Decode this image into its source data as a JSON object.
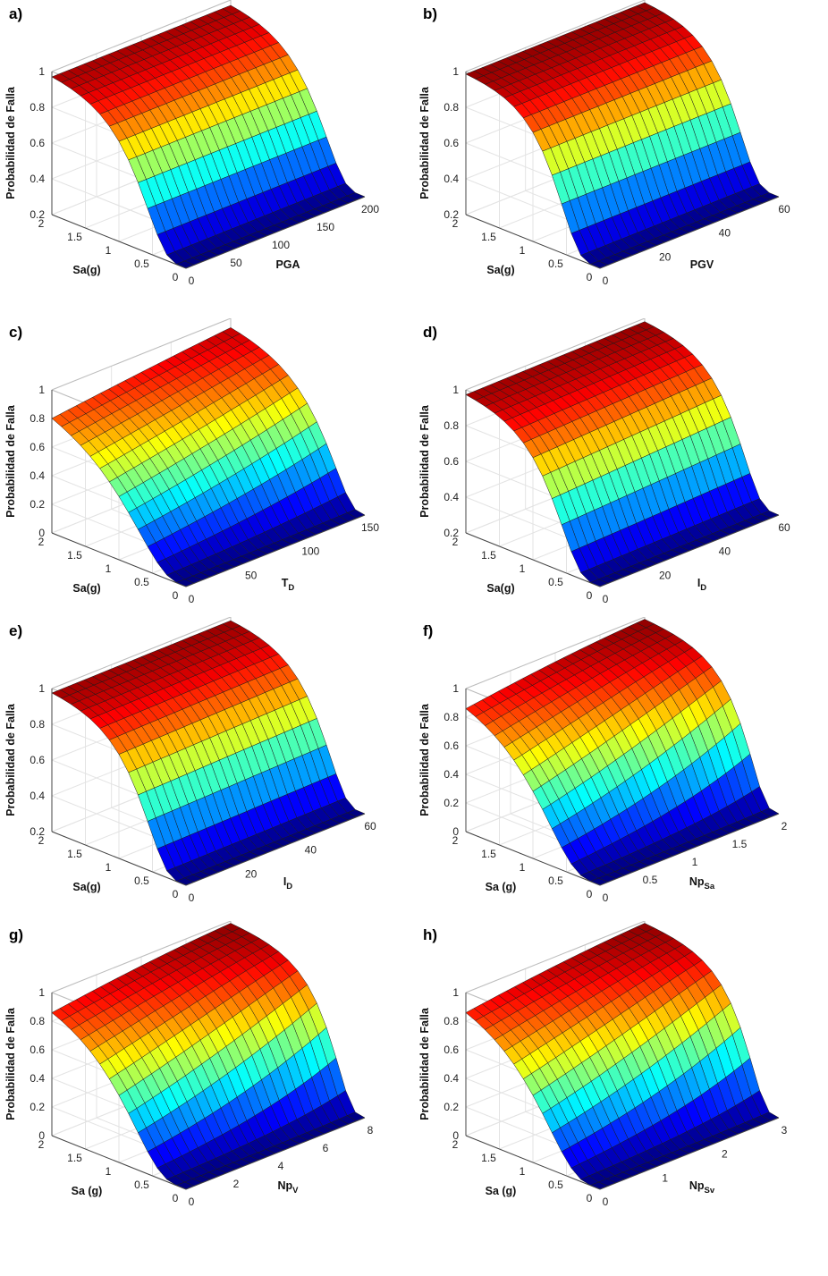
{
  "figure": {
    "zlabel": "Probabilidad de Falla",
    "ylabel_default": "Sa(g)",
    "ylabel_spaced": "Sa (g)"
  },
  "chart_data": [
    {
      "id": "a",
      "panel_label": "a)",
      "type": "surface",
      "xlabel": "PGA",
      "xlabel_sub": "",
      "ylabel": "Sa(g)",
      "zlabel": "Probabilidad de Falla",
      "xlim": [
        0,
        200
      ],
      "ylim": [
        0,
        2
      ],
      "zlim": [
        0.2,
        1
      ],
      "xticks": [
        0,
        50,
        100,
        150,
        200
      ],
      "xtick_labels": [
        "0",
        "50",
        "100",
        "150",
        "200"
      ],
      "yticks": [
        0,
        0.5,
        1,
        1.5,
        2
      ],
      "ytick_labels": [
        "0",
        "0.5",
        "1",
        "1.5",
        "2"
      ],
      "zticks": [
        0.2,
        0.4,
        0.6,
        0.8,
        1
      ],
      "ztick_labels": [
        "0.2",
        "0.4",
        "0.6",
        "0.8",
        "1"
      ],
      "surface": {
        "model": "lognormal_cdf",
        "y_median": 0.75,
        "y_beta": 0.55,
        "x_effect": 0.0
      }
    },
    {
      "id": "b",
      "panel_label": "b)",
      "type": "surface",
      "xlabel": "PGV",
      "xlabel_sub": "",
      "ylabel": "Sa(g)",
      "zlabel": "Probabilidad de Falla",
      "xlim": [
        0,
        60
      ],
      "ylim": [
        0,
        2
      ],
      "zlim": [
        0.2,
        1
      ],
      "xticks": [
        0,
        20,
        40,
        60
      ],
      "xtick_labels": [
        "0",
        "20",
        "40",
        "60"
      ],
      "yticks": [
        0,
        0.5,
        1,
        1.5,
        2
      ],
      "ytick_labels": [
        "0",
        "0.5",
        "1",
        "1.5",
        "2"
      ],
      "zticks": [
        0.2,
        0.4,
        0.6,
        0.8,
        1
      ],
      "ztick_labels": [
        "0.2",
        "0.4",
        "0.6",
        "0.8",
        "1"
      ],
      "surface": {
        "model": "lognormal_cdf",
        "y_median": 0.7,
        "y_beta": 0.5,
        "x_effect": 0.0
      }
    },
    {
      "id": "c",
      "panel_label": "c)",
      "type": "surface",
      "xlabel": "T",
      "xlabel_sub": "D",
      "ylabel": "Sa(g)",
      "zlabel": "Probabilidad de Falla",
      "xlim": [
        0,
        150
      ],
      "ylim": [
        0,
        2
      ],
      "zlim": [
        0,
        1
      ],
      "xticks": [
        0,
        50,
        100,
        150
      ],
      "xtick_labels": [
        "0",
        "50",
        "100",
        "150"
      ],
      "yticks": [
        0,
        0.5,
        1,
        1.5,
        2
      ],
      "ytick_labels": [
        "0",
        "0.5",
        "1",
        "1.5",
        "2"
      ],
      "zticks": [
        0,
        0.2,
        0.4,
        0.6,
        0.8,
        1
      ],
      "ztick_labels": [
        "0",
        "0.2",
        "0.4",
        "0.6",
        "0.8",
        "1"
      ],
      "surface": {
        "model": "lognormal_cdf",
        "y_median": 0.9,
        "y_beta": 0.7,
        "x_effect": 0.6
      }
    },
    {
      "id": "d",
      "panel_label": "d)",
      "type": "surface",
      "xlabel": "I",
      "xlabel_sub": "D",
      "ylabel": "Sa(g)",
      "zlabel": "Probabilidad de Falla",
      "xlim": [
        0,
        60
      ],
      "ylim": [
        0,
        2
      ],
      "zlim": [
        0.2,
        1
      ],
      "xticks": [
        0,
        20,
        40,
        60
      ],
      "xtick_labels": [
        "0",
        "20",
        "40",
        "60"
      ],
      "yticks": [
        0,
        0.5,
        1,
        1.5,
        2
      ],
      "ytick_labels": [
        "0",
        "0.5",
        "1",
        "1.5",
        "2"
      ],
      "zticks": [
        0.2,
        0.4,
        0.6,
        0.8,
        1
      ],
      "ztick_labels": [
        "0.2",
        "0.4",
        "0.6",
        "0.8",
        "1"
      ],
      "surface": {
        "model": "lognormal_cdf",
        "y_median": 0.7,
        "y_beta": 0.55,
        "x_effect": 0.1
      }
    },
    {
      "id": "e",
      "panel_label": "e)",
      "type": "surface",
      "xlabel": "I",
      "xlabel_sub": "D",
      "ylabel": "Sa(g)",
      "zlabel": "Probabilidad de Falla",
      "xlim": [
        0,
        60
      ],
      "ylim": [
        0,
        2
      ],
      "zlim": [
        0.2,
        1
      ],
      "xticks": [
        0,
        20,
        40,
        60
      ],
      "xtick_labels": [
        "0",
        "20",
        "40",
        "60"
      ],
      "yticks": [
        0,
        0.5,
        1,
        1.5,
        2
      ],
      "ytick_labels": [
        "0",
        "0.5",
        "1",
        "1.5",
        "2"
      ],
      "zticks": [
        0.2,
        0.4,
        0.6,
        0.8,
        1
      ],
      "ztick_labels": [
        "0.2",
        "0.4",
        "0.6",
        "0.8",
        "1"
      ],
      "surface": {
        "model": "lognormal_cdf",
        "y_median": 0.7,
        "y_beta": 0.55,
        "x_effect": 0.05
      }
    },
    {
      "id": "f",
      "panel_label": "f)",
      "type": "surface",
      "xlabel": "Np",
      "xlabel_sub": "Sa",
      "ylabel": "Sa (g)",
      "zlabel": "Probabilidad de Falla",
      "xlim": [
        0,
        2
      ],
      "ylim": [
        0,
        2
      ],
      "zlim": [
        0,
        1
      ],
      "xticks": [
        0,
        0.5,
        1,
        1.5,
        2
      ],
      "xtick_labels": [
        "0",
        "0.5",
        "1",
        "1.5",
        "2"
      ],
      "yticks": [
        0,
        0.5,
        1,
        1.5,
        2
      ],
      "ytick_labels": [
        "0",
        "0.5",
        "1",
        "1.5",
        "2"
      ],
      "zticks": [
        0,
        0.2,
        0.4,
        0.6,
        0.8,
        1
      ],
      "ztick_labels": [
        "0",
        "0.2",
        "0.4",
        "0.6",
        "0.8",
        "1"
      ],
      "surface": {
        "model": "lognormal_cdf",
        "y_median": 0.8,
        "y_beta": 0.6,
        "x_effect": 0.9
      }
    },
    {
      "id": "g",
      "panel_label": "g)",
      "type": "surface",
      "xlabel": "Np",
      "xlabel_sub": "V",
      "ylabel": "Sa (g)",
      "zlabel": "Probabilidad de Falla",
      "xlim": [
        0,
        8
      ],
      "ylim": [
        0,
        2
      ],
      "zlim": [
        0,
        1
      ],
      "xticks": [
        0,
        2,
        4,
        6,
        8
      ],
      "xtick_labels": [
        "0",
        "2",
        "4",
        "6",
        "8"
      ],
      "yticks": [
        0,
        0.5,
        1,
        1.5,
        2
      ],
      "ytick_labels": [
        "0",
        "0.5",
        "1",
        "1.5",
        "2"
      ],
      "zticks": [
        0,
        0.2,
        0.4,
        0.6,
        0.8,
        1
      ],
      "ztick_labels": [
        "0",
        "0.2",
        "0.4",
        "0.6",
        "0.8",
        "1"
      ],
      "surface": {
        "model": "lognormal_cdf",
        "y_median": 0.8,
        "y_beta": 0.6,
        "x_effect": 0.9
      }
    },
    {
      "id": "h",
      "panel_label": "h)",
      "type": "surface",
      "xlabel": "Np",
      "xlabel_sub": "Sv",
      "ylabel": "Sa (g)",
      "zlabel": "Probabilidad de Falla",
      "xlim": [
        0,
        3
      ],
      "ylim": [
        0,
        2
      ],
      "zlim": [
        0,
        1
      ],
      "xticks": [
        0,
        1,
        2,
        3
      ],
      "xtick_labels": [
        "0",
        "1",
        "2",
        "3"
      ],
      "yticks": [
        0,
        0.5,
        1,
        1.5,
        2
      ],
      "ytick_labels": [
        "0",
        "0.5",
        "1",
        "1.5",
        "2"
      ],
      "zticks": [
        0,
        0.2,
        0.4,
        0.6,
        0.8,
        1
      ],
      "ztick_labels": [
        "0",
        "0.2",
        "0.4",
        "0.6",
        "0.8",
        "1"
      ],
      "surface": {
        "model": "lognormal_cdf",
        "y_median": 0.8,
        "y_beta": 0.6,
        "x_effect": 0.9
      }
    }
  ]
}
